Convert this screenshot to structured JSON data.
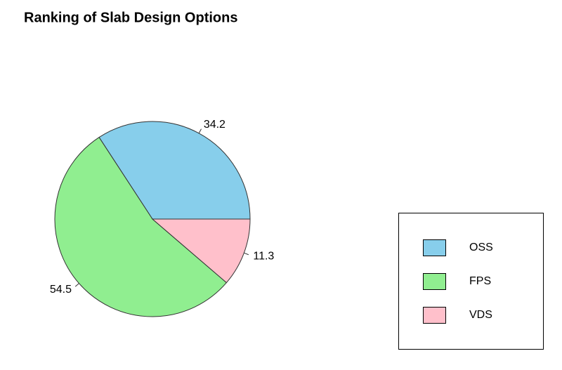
{
  "chart_data": {
    "type": "pie",
    "title": "Ranking of Slab Design Options",
    "categories": [
      "OSS",
      "FPS",
      "VDS"
    ],
    "values": [
      34.2,
      54.5,
      11.3
    ],
    "colors": [
      "#87ceeb",
      "#90ee90",
      "#ffc0cb"
    ],
    "legend": "right"
  }
}
